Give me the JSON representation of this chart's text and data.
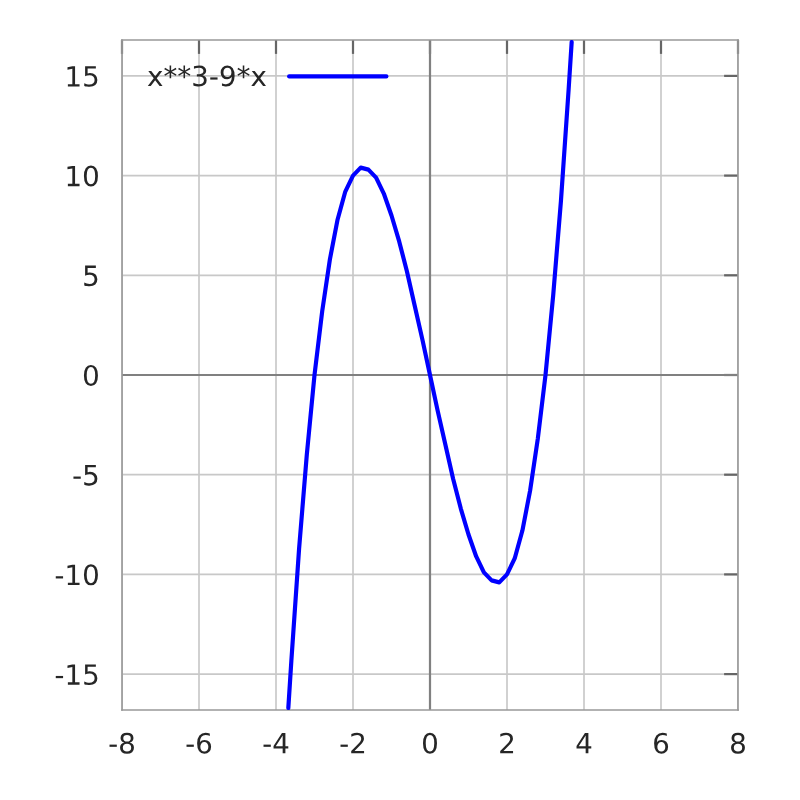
{
  "chart_data": {
    "type": "line",
    "x": [
      -3.68,
      -3.6,
      -3.4,
      -3.2,
      -3.0,
      -2.8,
      -2.6,
      -2.4,
      -2.2,
      -2.0,
      -1.8,
      -1.6,
      -1.4,
      -1.2,
      -1.0,
      -0.8,
      -0.6,
      -0.4,
      -0.2,
      0,
      0.2,
      0.4,
      0.6,
      0.8,
      1.0,
      1.2,
      1.4,
      1.6,
      1.8,
      2.0,
      2.2,
      2.4,
      2.6,
      2.8,
      3.0,
      3.2,
      3.4,
      3.6,
      3.68
    ],
    "series": [
      {
        "name": "x**3-9*x",
        "color": "#0000ff",
        "values": [
          -16.7,
          -14.3,
          -8.7,
          -4.0,
          0,
          3.2,
          5.8,
          7.8,
          9.2,
          10,
          10.4,
          10.3,
          9.9,
          9.1,
          8,
          6.7,
          5.2,
          3.5,
          1.8,
          0,
          -1.8,
          -3.5,
          -5.2,
          -6.7,
          -8,
          -9.1,
          -9.9,
          -10.3,
          -10.4,
          -10,
          -9.2,
          -7.8,
          -5.8,
          -3.2,
          0,
          4.0,
          8.7,
          14.3,
          16.7
        ]
      }
    ],
    "xlim": [
      -8,
      8
    ],
    "ylim": [
      -16.8,
      16.8
    ],
    "xticks": [
      -8,
      -6,
      -4,
      -2,
      0,
      2,
      4,
      6,
      8
    ],
    "yticks": [
      -15,
      -10,
      -5,
      0,
      5,
      10,
      15
    ],
    "grid": true,
    "legend": "top left",
    "line_style": "solid",
    "marker": "none"
  }
}
